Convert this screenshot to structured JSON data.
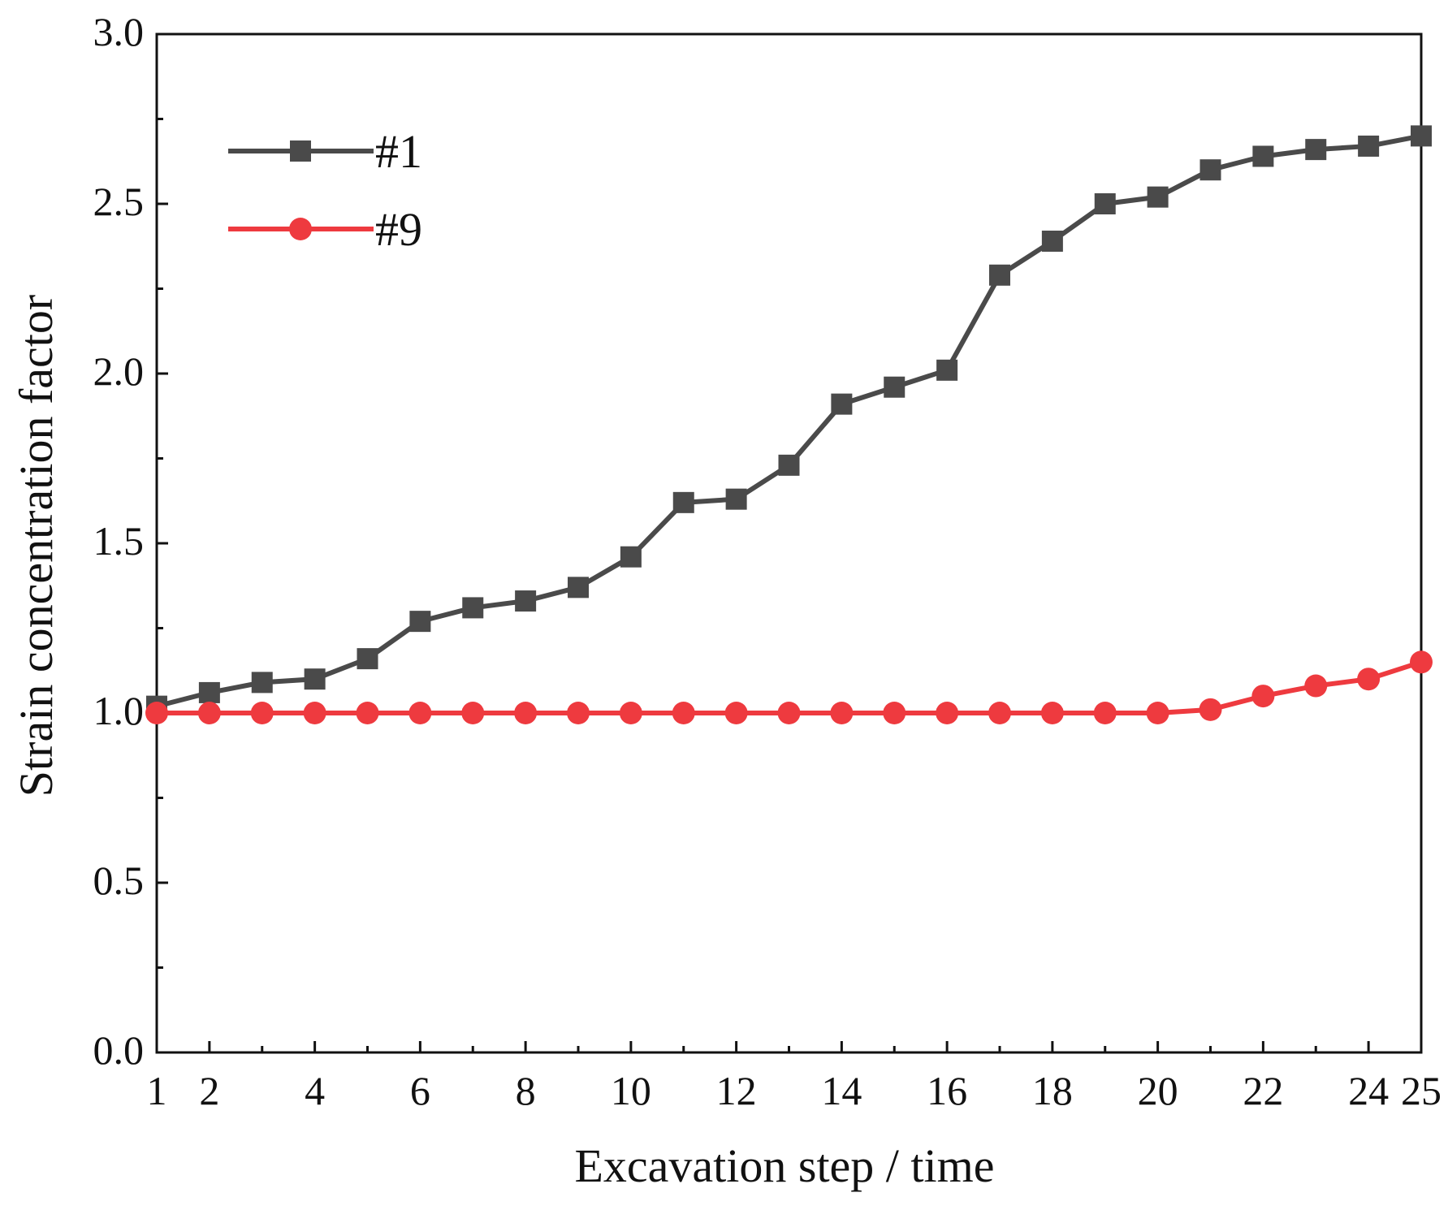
{
  "chart_data": {
    "type": "line",
    "title": "",
    "xlabel": "Excavation step / time",
    "ylabel": "Strain concentration factor",
    "xlim": [
      1,
      25
    ],
    "ylim": [
      0.0,
      3.0
    ],
    "x_ticks": [
      1,
      2,
      4,
      6,
      8,
      10,
      12,
      14,
      16,
      18,
      20,
      22,
      24,
      25
    ],
    "x_tick_labels": [
      "1",
      "2",
      "4",
      "6",
      "8",
      "10",
      "12",
      "14",
      "16",
      "18",
      "20",
      "22",
      "24",
      "25"
    ],
    "y_ticks": [
      0.0,
      0.5,
      1.0,
      1.5,
      2.0,
      2.5,
      3.0
    ],
    "y_tick_labels": [
      "0.0",
      "0.5",
      "1.0",
      "1.5",
      "2.0",
      "2.5",
      "3.0"
    ],
    "grid": false,
    "legend_position": "top-left",
    "x": [
      1,
      2,
      3,
      4,
      5,
      6,
      7,
      8,
      9,
      10,
      11,
      12,
      13,
      14,
      15,
      16,
      17,
      18,
      19,
      20,
      21,
      22,
      23,
      24,
      25
    ],
    "series": [
      {
        "name": "#1",
        "color": "#4a4a4a",
        "marker": "square",
        "values": [
          1.02,
          1.06,
          1.09,
          1.1,
          1.16,
          1.27,
          1.31,
          1.33,
          1.37,
          1.46,
          1.62,
          1.63,
          1.73,
          1.91,
          1.96,
          2.01,
          2.29,
          2.39,
          2.5,
          2.52,
          2.6,
          2.64,
          2.66,
          2.67,
          2.7
        ]
      },
      {
        "name": "#9",
        "color": "#ee3a3f",
        "marker": "circle",
        "values": [
          1.0,
          1.0,
          1.0,
          1.0,
          1.0,
          1.0,
          1.0,
          1.0,
          1.0,
          1.0,
          1.0,
          1.0,
          1.0,
          1.0,
          1.0,
          1.0,
          1.0,
          1.0,
          1.0,
          1.0,
          1.01,
          1.05,
          1.08,
          1.1,
          1.15
        ]
      }
    ]
  }
}
